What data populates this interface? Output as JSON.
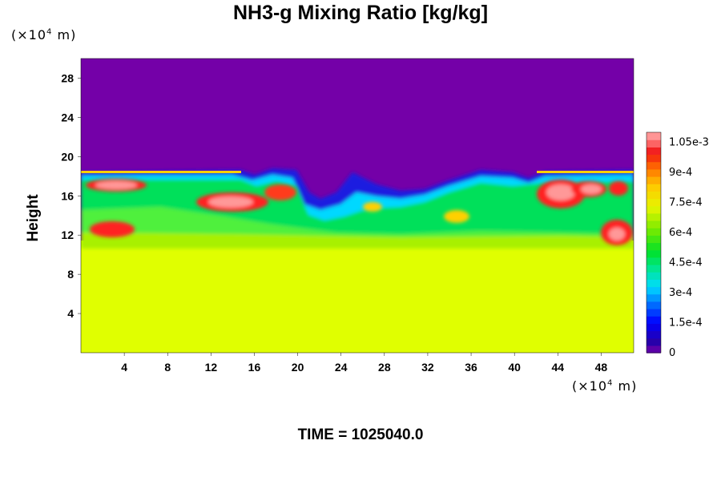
{
  "title": "NH3-g Mixing Ratio [kg/kg]",
  "time_label": "TIME = 1025040.0",
  "unit_y": {
    "prefix": "(×10",
    "exp": "4",
    "suffix": " m)"
  },
  "unit_x": {
    "prefix": "(×10",
    "exp": "4",
    "suffix": " m)"
  },
  "colors": {
    "background_top": "#7400a8",
    "lower_layer": "#e0ff00"
  },
  "chart_data": {
    "type": "heatmap",
    "title": "NH3-g Mixing Ratio [kg/kg]",
    "ylabel": "Height",
    "xlabel": "",
    "xlim": [
      0,
      51
    ],
    "ylim": [
      0,
      30
    ],
    "xticks": [
      "4",
      "8",
      "12",
      "16",
      "20",
      "24",
      "28",
      "32",
      "36",
      "40",
      "44",
      "48"
    ],
    "yticks": [
      "4",
      "8",
      "12",
      "16",
      "20",
      "24",
      "28"
    ],
    "colorbar": {
      "min": 0,
      "max": 0.0011,
      "tick_labels": [
        "0",
        "1.5e-4",
        "3e-4",
        "4.5e-4",
        "6e-4",
        "7.5e-4",
        "9e-4",
        "1.05e-3"
      ]
    },
    "field_summary": {
      "top_region_value": 0,
      "bottom_region_value": 0.00078,
      "mixing_layer_height_range": [
        11,
        18
      ]
    }
  }
}
